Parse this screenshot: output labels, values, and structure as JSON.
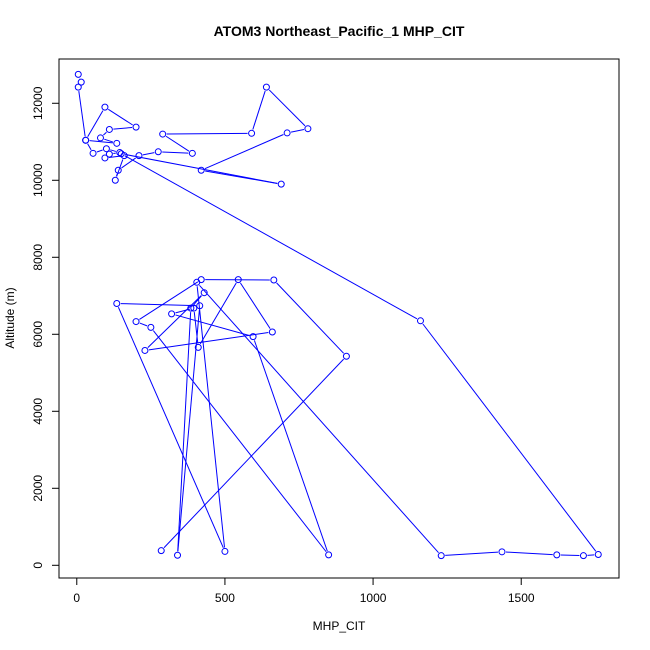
{
  "chart_data": {
    "type": "line",
    "title": "ATOM3 Northeast_Pacific_1 MHP_CIT",
    "xlabel": "MHP_CIT",
    "ylabel": "Altitude (m)",
    "xlim": [
      -60,
      1830
    ],
    "ylim": [
      -330,
      13150
    ],
    "xticks": [
      0,
      500,
      1000,
      1500
    ],
    "yticks": [
      0,
      2000,
      4000,
      6000,
      8000,
      10000,
      12000
    ],
    "grid": false,
    "color": "#0000ff",
    "series": [
      {
        "x": [
          5,
          15,
          5,
          30,
          95,
          200,
          110,
          80,
          135,
          30,
          55,
          100,
          145,
          110,
          95,
          160,
          130,
          140,
          210,
          275,
          390,
          290,
          590,
          640,
          780,
          710,
          420,
          690,
          150,
          1160,
          1760,
          1710,
          1620,
          1435,
          1230,
          405,
          500,
          135,
          415,
          340,
          385,
          430,
          230,
          660,
          545,
          410,
          395,
          320,
          595,
          850,
          250,
          200,
          420,
          665,
          910,
          285
        ],
        "y": [
          12750,
          12550,
          12420,
          11040,
          11900,
          11380,
          11320,
          11100,
          10960,
          11040,
          10700,
          10820,
          10720,
          10680,
          10580,
          10640,
          10000,
          10260,
          10640,
          10740,
          10700,
          11200,
          11220,
          12420,
          11340,
          11230,
          10260,
          9900,
          10690,
          6350,
          280,
          250,
          270,
          350,
          250,
          7350,
          360,
          6800,
          6740,
          260,
          6680,
          7080,
          5580,
          6060,
          7420,
          5660,
          6680,
          6530,
          5940,
          270,
          6180,
          6330,
          7420,
          7410,
          5430,
          380
        ]
      }
    ]
  }
}
